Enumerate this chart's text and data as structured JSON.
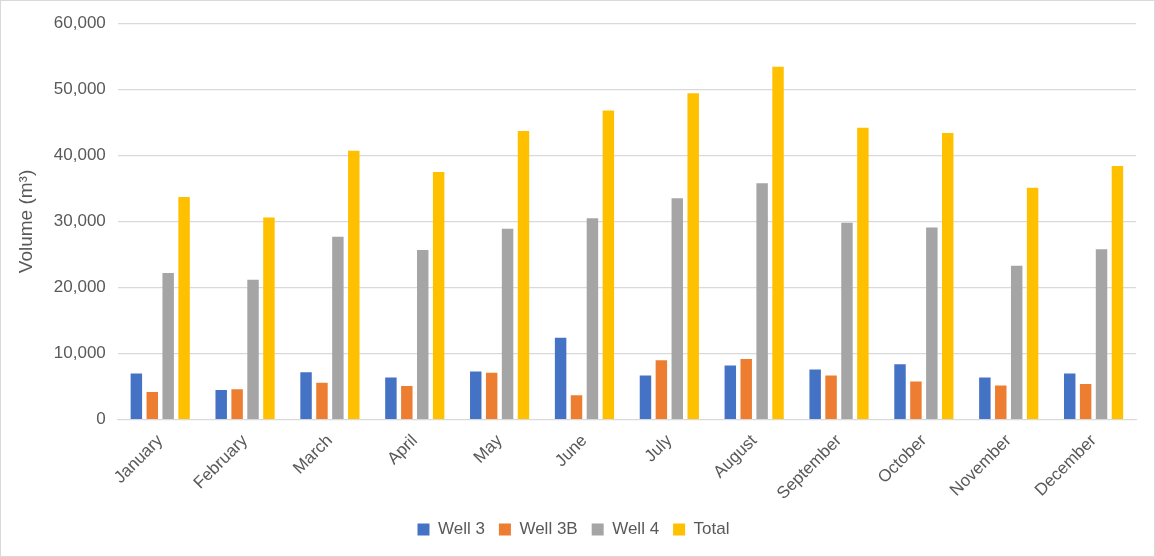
{
  "chart_data": {
    "type": "bar",
    "ylabel": "Volume (m³)",
    "categories": [
      "January",
      "February",
      "March",
      "April",
      "May",
      "June",
      "July",
      "August",
      "September",
      "October",
      "November",
      "December"
    ],
    "series": [
      {
        "name": "Well 3",
        "color": "#4472c4",
        "values": [
          7000,
          4500,
          7200,
          6400,
          7300,
          12400,
          6700,
          8200,
          7600,
          8400,
          6400,
          7000
        ]
      },
      {
        "name": "Well 3B",
        "color": "#ed7d31",
        "values": [
          4200,
          4600,
          5600,
          5100,
          7100,
          3700,
          9000,
          9200,
          6700,
          5800,
          5200,
          5400
        ]
      },
      {
        "name": "Well 4",
        "color": "#a5a5a5",
        "values": [
          22200,
          21200,
          27700,
          25700,
          28900,
          30500,
          33500,
          35800,
          29800,
          29100,
          23300,
          25800
        ]
      },
      {
        "name": "Total",
        "color": "#ffc000",
        "values": [
          33700,
          30600,
          40700,
          37500,
          43700,
          46800,
          49400,
          53400,
          44200,
          43400,
          35100,
          38400
        ]
      }
    ],
    "ylim": [
      0,
      60000
    ],
    "yticks": [
      0,
      {
        "value": 10000,
        "label": "10,000"
      },
      {
        "value": 20000,
        "label": "20,000"
      },
      {
        "value": 30000,
        "label": "30,000"
      },
      {
        "value": 40000,
        "label": "40,000"
      },
      {
        "value": 50000,
        "label": "50,000"
      },
      {
        "value": 60000,
        "label": "60,000"
      }
    ],
    "grid": "y",
    "legend": "bottom"
  }
}
